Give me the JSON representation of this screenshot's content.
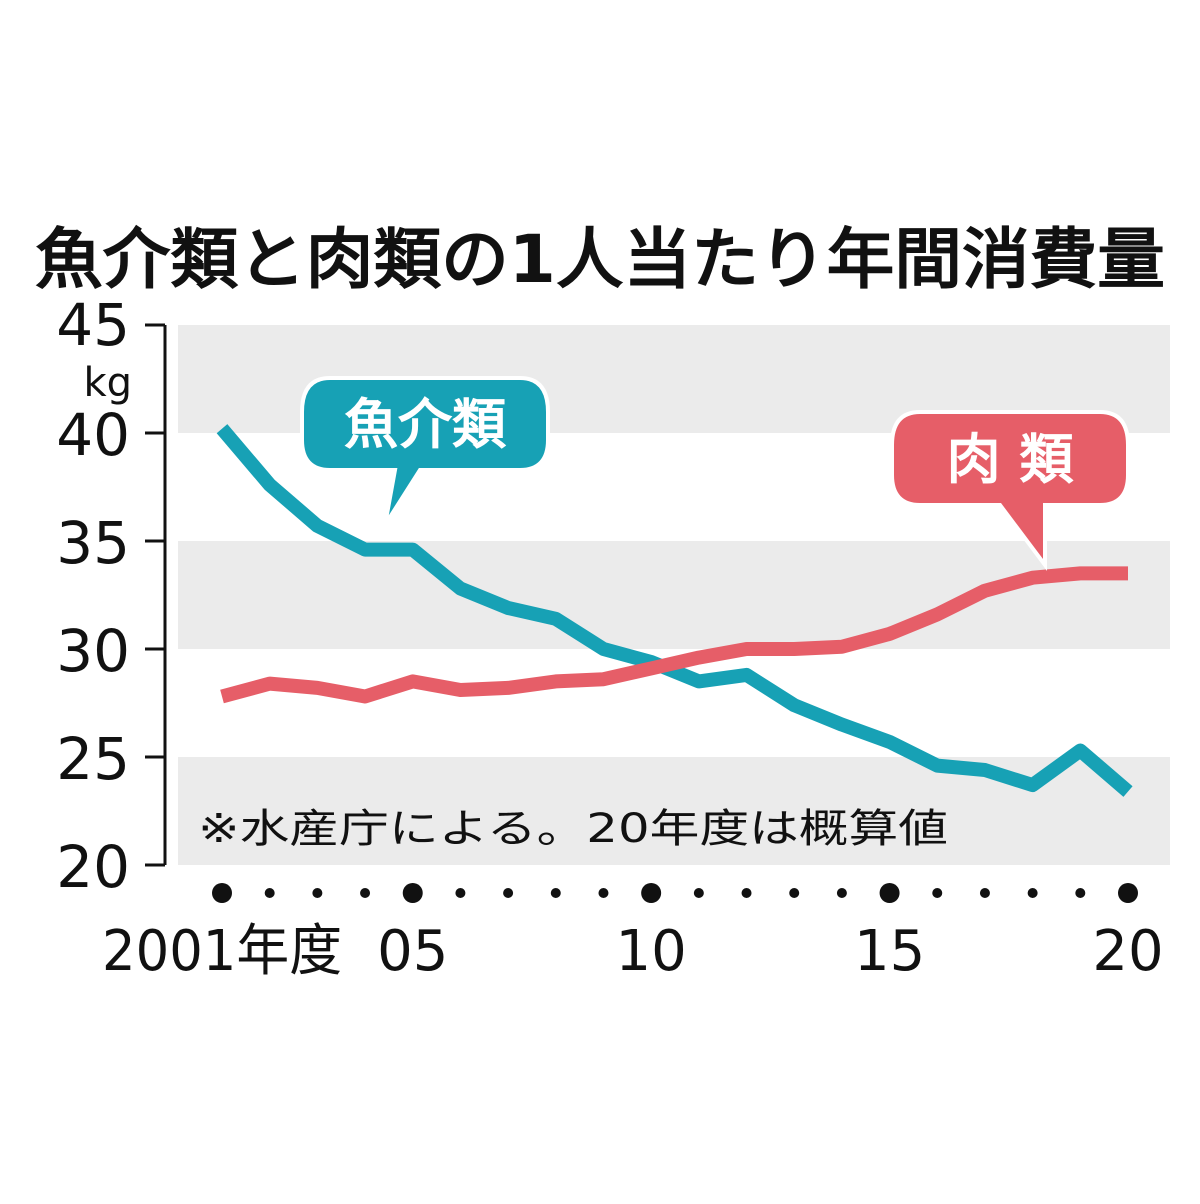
{
  "chart_data": {
    "type": "line",
    "title": "魚介類と肉類の1人当たり年間消費量",
    "ylabel": "kg",
    "ylim": [
      20,
      45
    ],
    "yticks": [
      "20",
      "25",
      "30",
      "35",
      "40",
      "45"
    ],
    "x": [
      2001,
      2002,
      2003,
      2004,
      2005,
      2006,
      2007,
      2008,
      2009,
      2010,
      2011,
      2012,
      2013,
      2014,
      2015,
      2016,
      2017,
      2018,
      2019,
      2020
    ],
    "xtick_labels": [
      {
        "year": 2001,
        "label": "2001年度"
      },
      {
        "year": 2005,
        "label": "05"
      },
      {
        "year": 2010,
        "label": "10"
      },
      {
        "year": 2015,
        "label": "15"
      },
      {
        "year": 2020,
        "label": "20"
      }
    ],
    "grid": "alternating horizontal bands",
    "series": [
      {
        "name": "魚介類",
        "color": "#17a1b5",
        "values": [
          40.2,
          37.6,
          35.7,
          34.6,
          34.6,
          32.8,
          31.9,
          31.4,
          30.0,
          29.4,
          28.5,
          28.8,
          27.4,
          26.5,
          25.7,
          24.6,
          24.4,
          23.7,
          25.3,
          23.4
        ]
      },
      {
        "name": "肉 類",
        "color": "#e65e68",
        "values": [
          27.8,
          28.4,
          28.2,
          27.8,
          28.5,
          28.1,
          28.2,
          28.5,
          28.6,
          29.1,
          29.6,
          30.0,
          30.0,
          30.1,
          30.7,
          31.6,
          32.7,
          33.3,
          33.5,
          33.5
        ]
      }
    ],
    "note": "※水産庁による。20年度は概算値"
  }
}
